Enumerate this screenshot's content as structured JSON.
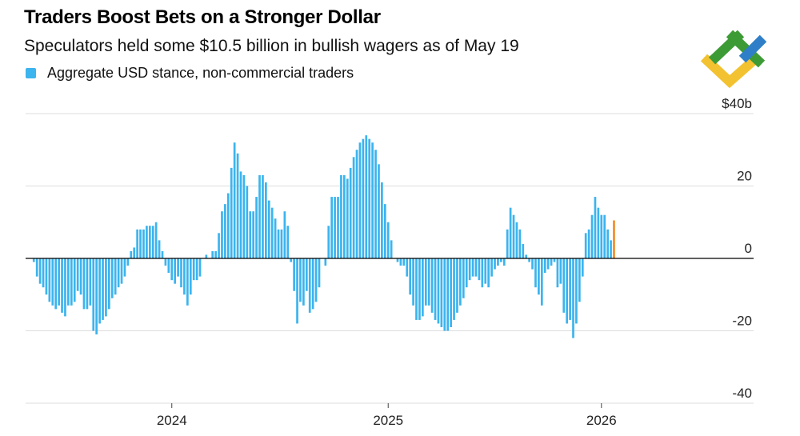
{
  "header": {
    "title": "Traders Boost Bets on a Stronger Dollar",
    "subtitle": "Speculators held some $10.5 billion in bullish wagers as of May 19"
  },
  "legend": {
    "label": "Aggregate USD stance, non-commercial traders",
    "color": "#3cb4ee"
  },
  "logo": {
    "icon": "lite-finance-logo-icon",
    "colors": [
      "#3d9b35",
      "#2f7fc8",
      "#f2c230"
    ]
  },
  "colors": {
    "bar": "#3cb4ee",
    "highlight": "#f28c28",
    "grid": "#dddddd",
    "zero_line": "#000000"
  },
  "chart_data": {
    "type": "bar",
    "title": "Traders Boost Bets on a Stronger Dollar",
    "ylim": [
      -40,
      40
    ],
    "y_ticks": [
      {
        "value": 40,
        "label": "$40b"
      },
      {
        "value": 20,
        "label": "20"
      },
      {
        "value": 0,
        "label": "0"
      },
      {
        "value": -20,
        "label": "-20"
      },
      {
        "value": -40,
        "label": "-40"
      }
    ],
    "x_ticks": [
      {
        "index": 45,
        "label": "2024"
      },
      {
        "index": 114,
        "label": "2025"
      },
      {
        "index": 182,
        "label": "2026"
      }
    ],
    "highlight_last": true,
    "series": [
      {
        "name": "Aggregate USD stance, non-commercial traders",
        "values": [
          0,
          -1,
          -5,
          -7,
          -8,
          -10,
          -12,
          -13,
          -14,
          -13,
          -15,
          -16,
          -13,
          -13,
          -12,
          -9,
          -10,
          -14,
          -14,
          -13,
          -20,
          -21,
          -18,
          -17,
          -16,
          -14,
          -11,
          -10,
          -8,
          -7,
          -5,
          -2,
          2,
          3,
          8,
          8,
          8,
          9,
          9,
          9,
          10,
          5,
          2,
          -2,
          -4,
          -6,
          -7,
          -5,
          -8,
          -10,
          -13,
          -10,
          -6,
          -6,
          -5,
          0,
          1,
          0,
          2,
          2,
          7,
          13,
          15,
          18,
          25,
          32,
          29,
          24,
          23,
          20,
          13,
          13,
          17,
          23,
          23,
          21,
          16,
          14,
          11,
          8,
          8,
          13,
          9,
          -1,
          -9,
          -18,
          -12,
          -13,
          -9,
          -15,
          -14,
          -12,
          -8,
          0,
          -2,
          9,
          17,
          17,
          17,
          23,
          23,
          22,
          25,
          28,
          30,
          32,
          33,
          34,
          33,
          32,
          30,
          26,
          21,
          15,
          10,
          5,
          0,
          -1,
          -2,
          -2,
          -5,
          -10,
          -13,
          -17,
          -17,
          -16,
          -13,
          -13,
          -15,
          -17,
          -18,
          -19,
          -20,
          -20,
          -19,
          -17,
          -15,
          -13,
          -11,
          -8,
          -6,
          -5,
          -5,
          -6,
          -8,
          -7,
          -8,
          -5,
          -3,
          -2,
          -1,
          -2,
          8,
          14,
          12,
          10,
          8,
          4,
          1,
          -1,
          -3,
          -8,
          -10,
          -13,
          -4,
          -3,
          -2,
          -1,
          -8,
          -7,
          -15,
          -18,
          -17,
          -22,
          -18,
          -12,
          -5,
          7,
          8,
          12,
          17,
          14,
          12,
          12,
          8,
          5,
          10.5
        ]
      }
    ]
  }
}
